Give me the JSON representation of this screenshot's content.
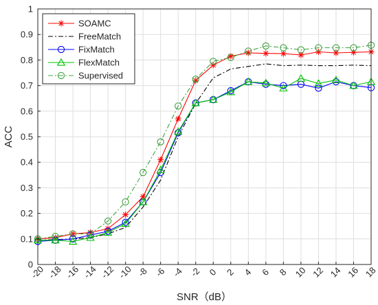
{
  "chart_data": {
    "type": "line",
    "xlabel": "SNR（dB）",
    "ylabel": "ACC",
    "x": [
      -20,
      -18,
      -16,
      -14,
      -12,
      -10,
      -8,
      -6,
      -4,
      -2,
      0,
      2,
      4,
      6,
      8,
      10,
      12,
      14,
      16,
      18
    ],
    "xticks": [
      "-20",
      "-18",
      "-16",
      "-14",
      "-12",
      "-10",
      "-8",
      "-6",
      "-4",
      "-2",
      "0",
      "2",
      "4",
      "6",
      "8",
      "10",
      "12",
      "14",
      "16",
      "18"
    ],
    "yticks": [
      "0",
      "0.1",
      "0.2",
      "0.3",
      "0.4",
      "0.5",
      "0.6",
      "0.7",
      "0.8",
      "0.9",
      "1"
    ],
    "xlim": [
      -20,
      18
    ],
    "ylim": [
      0,
      1
    ],
    "grid": true,
    "legend_position": "top-left",
    "series": [
      {
        "name": "SOAMC",
        "color": "#ff0000",
        "dash": "solid",
        "marker": "asterisk",
        "values": [
          0.1,
          0.105,
          0.12,
          0.125,
          0.14,
          0.195,
          0.265,
          0.41,
          0.57,
          0.72,
          0.78,
          0.815,
          0.828,
          0.826,
          0.825,
          0.82,
          0.832,
          0.828,
          0.83,
          0.832
        ]
      },
      {
        "name": "FreeMatch",
        "color": "#000000",
        "dash": "dashdot",
        "marker": "none",
        "values": [
          0.095,
          0.097,
          0.1,
          0.105,
          0.12,
          0.145,
          0.225,
          0.33,
          0.5,
          0.63,
          0.73,
          0.765,
          0.775,
          0.785,
          0.778,
          0.78,
          0.778,
          0.778,
          0.78,
          0.778
        ]
      },
      {
        "name": "FixMatch",
        "color": "#0000ff",
        "dash": "solid",
        "marker": "circle",
        "values": [
          0.09,
          0.095,
          0.1,
          0.115,
          0.13,
          0.165,
          0.245,
          0.36,
          0.515,
          0.632,
          0.645,
          0.68,
          0.715,
          0.705,
          0.7,
          0.705,
          0.69,
          0.715,
          0.7,
          0.692
        ]
      },
      {
        "name": "FlexMatch",
        "color": "#00c000",
        "dash": "solid",
        "marker": "triangle",
        "values": [
          0.095,
          0.095,
          0.09,
          0.105,
          0.125,
          0.16,
          0.245,
          0.37,
          0.52,
          0.632,
          0.645,
          0.675,
          0.715,
          0.71,
          0.69,
          0.728,
          0.708,
          0.722,
          0.7,
          0.715
        ]
      },
      {
        "name": "Supervised",
        "color": "#40a040",
        "dash": "dashdot",
        "marker": "open-circle",
        "values": [
          0.1,
          0.11,
          0.12,
          0.12,
          0.17,
          0.245,
          0.36,
          0.48,
          0.62,
          0.725,
          0.795,
          0.81,
          0.835,
          0.855,
          0.848,
          0.84,
          0.848,
          0.848,
          0.848,
          0.858
        ]
      }
    ]
  }
}
